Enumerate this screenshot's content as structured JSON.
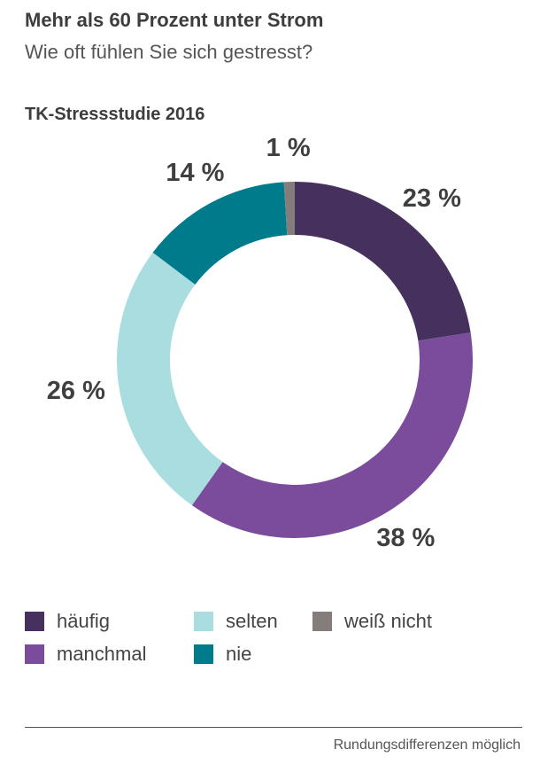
{
  "header": {
    "title": "Mehr als 60 Prozent unter Strom",
    "subtitle": "Wie oft fühlen Sie sich gestresst?",
    "study": "TK-Stressstudie 2016"
  },
  "chart_data": {
    "type": "pie",
    "variant": "donut",
    "start_angle_deg": 0,
    "direction": "clockwise",
    "title": "TK-Stressstudie 2016",
    "categories": [
      "häufig",
      "manchmal",
      "selten",
      "nie",
      "weiß nicht"
    ],
    "values": [
      23,
      38,
      26,
      14,
      1
    ],
    "labels": [
      "23 %",
      "38 %",
      "26 %",
      "14 %",
      "1 %"
    ],
    "colors": [
      "#46305e",
      "#7a4c9b",
      "#a9dde0",
      "#007b8c",
      "#857c7c"
    ],
    "legend": "bottom"
  },
  "legend": {
    "items": [
      {
        "label": "häufig",
        "color": "#46305e"
      },
      {
        "label": "manchmal",
        "color": "#7a4c9b"
      },
      {
        "label": "selten",
        "color": "#a9dde0"
      },
      {
        "label": "nie",
        "color": "#007b8c"
      },
      {
        "label": "weiß nicht",
        "color": "#857c7c"
      }
    ]
  },
  "footer": {
    "note": "Rundungsdifferenzen möglich"
  }
}
